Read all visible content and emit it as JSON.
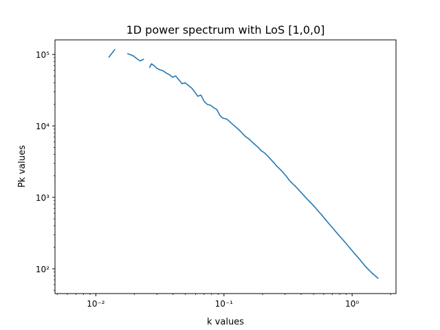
{
  "chart_data": {
    "type": "line",
    "title": "1D power spectrum with LoS [1,0,0]",
    "xlabel": "k values",
    "ylabel": "Pk values",
    "xscale": "log",
    "yscale": "log",
    "xlim": [
      0.0048,
      2.2
    ],
    "ylim": [
      45,
      160000
    ],
    "xticks": [
      {
        "value": 0.01,
        "label": "10⁻²"
      },
      {
        "value": 0.1,
        "label": "10⁻¹"
      },
      {
        "value": 1,
        "label": "10⁰"
      }
    ],
    "yticks": [
      {
        "value": 100,
        "label": "10²"
      },
      {
        "value": 1000,
        "label": "10³"
      },
      {
        "value": 10000,
        "label": "10⁴"
      },
      {
        "value": 100000,
        "label": "10⁵"
      }
    ],
    "grid": false,
    "line_color": "#1f77b4",
    "series": [
      {
        "segments": [
          [
            [
              0.0126,
              91000
            ],
            [
              0.0141,
              118000
            ]
          ],
          [
            [
              0.0176,
              103000
            ],
            [
              0.0195,
              96000
            ],
            [
              0.0208,
              88000
            ],
            [
              0.0222,
              81000
            ],
            [
              0.0237,
              86000
            ]
          ],
          [
            [
              0.0262,
              65000
            ],
            [
              0.0272,
              74000
            ],
            [
              0.0284,
              70000
            ],
            [
              0.0299,
              64000
            ],
            [
              0.0316,
              61000
            ],
            [
              0.0335,
              59000
            ],
            [
              0.0354,
              55000
            ],
            [
              0.0375,
              52000
            ],
            [
              0.0397,
              48000
            ],
            [
              0.042,
              50000
            ],
            [
              0.0445,
              44000
            ],
            [
              0.0471,
              39000
            ],
            [
              0.0498,
              40000
            ],
            [
              0.0527,
              37000
            ],
            [
              0.0558,
              34000
            ],
            [
              0.059,
              30000
            ],
            [
              0.0625,
              26000
            ],
            [
              0.0661,
              27000
            ],
            [
              0.07,
              22000
            ],
            [
              0.0741,
              20000
            ],
            [
              0.0784,
              19500
            ],
            [
              0.083,
              18000
            ],
            [
              0.0878,
              17000
            ],
            [
              0.093,
              14000
            ],
            [
              0.098,
              12800
            ],
            [
              0.105,
              12500
            ],
            [
              0.11,
              11600
            ],
            [
              0.117,
              10500
            ],
            [
              0.124,
              9600
            ],
            [
              0.131,
              8800
            ],
            [
              0.139,
              7900
            ],
            [
              0.147,
              7100
            ],
            [
              0.156,
              6600
            ],
            [
              0.165,
              6000
            ],
            [
              0.174,
              5500
            ],
            [
              0.185,
              5000
            ],
            [
              0.195,
              4500
            ],
            [
              0.207,
              4200
            ],
            [
              0.219,
              3800
            ],
            [
              0.232,
              3400
            ],
            [
              0.245,
              3050
            ],
            [
              0.26,
              2700
            ],
            [
              0.275,
              2450
            ],
            [
              0.291,
              2200
            ],
            [
              0.308,
              1950
            ],
            [
              0.326,
              1700
            ],
            [
              0.345,
              1540
            ],
            [
              0.365,
              1400
            ],
            [
              0.386,
              1250
            ],
            [
              0.409,
              1120
            ],
            [
              0.433,
              1000
            ],
            [
              0.458,
              900
            ],
            [
              0.485,
              810
            ],
            [
              0.513,
              725
            ],
            [
              0.543,
              645
            ],
            [
              0.575,
              575
            ],
            [
              0.608,
              510
            ],
            [
              0.644,
              450
            ],
            [
              0.681,
              400
            ],
            [
              0.721,
              355
            ],
            [
              0.763,
              315
            ],
            [
              0.808,
              280
            ],
            [
              0.855,
              250
            ],
            [
              0.905,
              222
            ],
            [
              0.957,
              197
            ],
            [
              1.013,
              175
            ],
            [
              1.072,
              155
            ],
            [
              1.135,
              138
            ],
            [
              1.2,
              122
            ],
            [
              1.27,
              108
            ],
            [
              1.345,
              97
            ],
            [
              1.42,
              88
            ],
            [
              1.5,
              81
            ],
            [
              1.56,
              76
            ],
            [
              1.6,
              73
            ]
          ]
        ]
      }
    ]
  }
}
